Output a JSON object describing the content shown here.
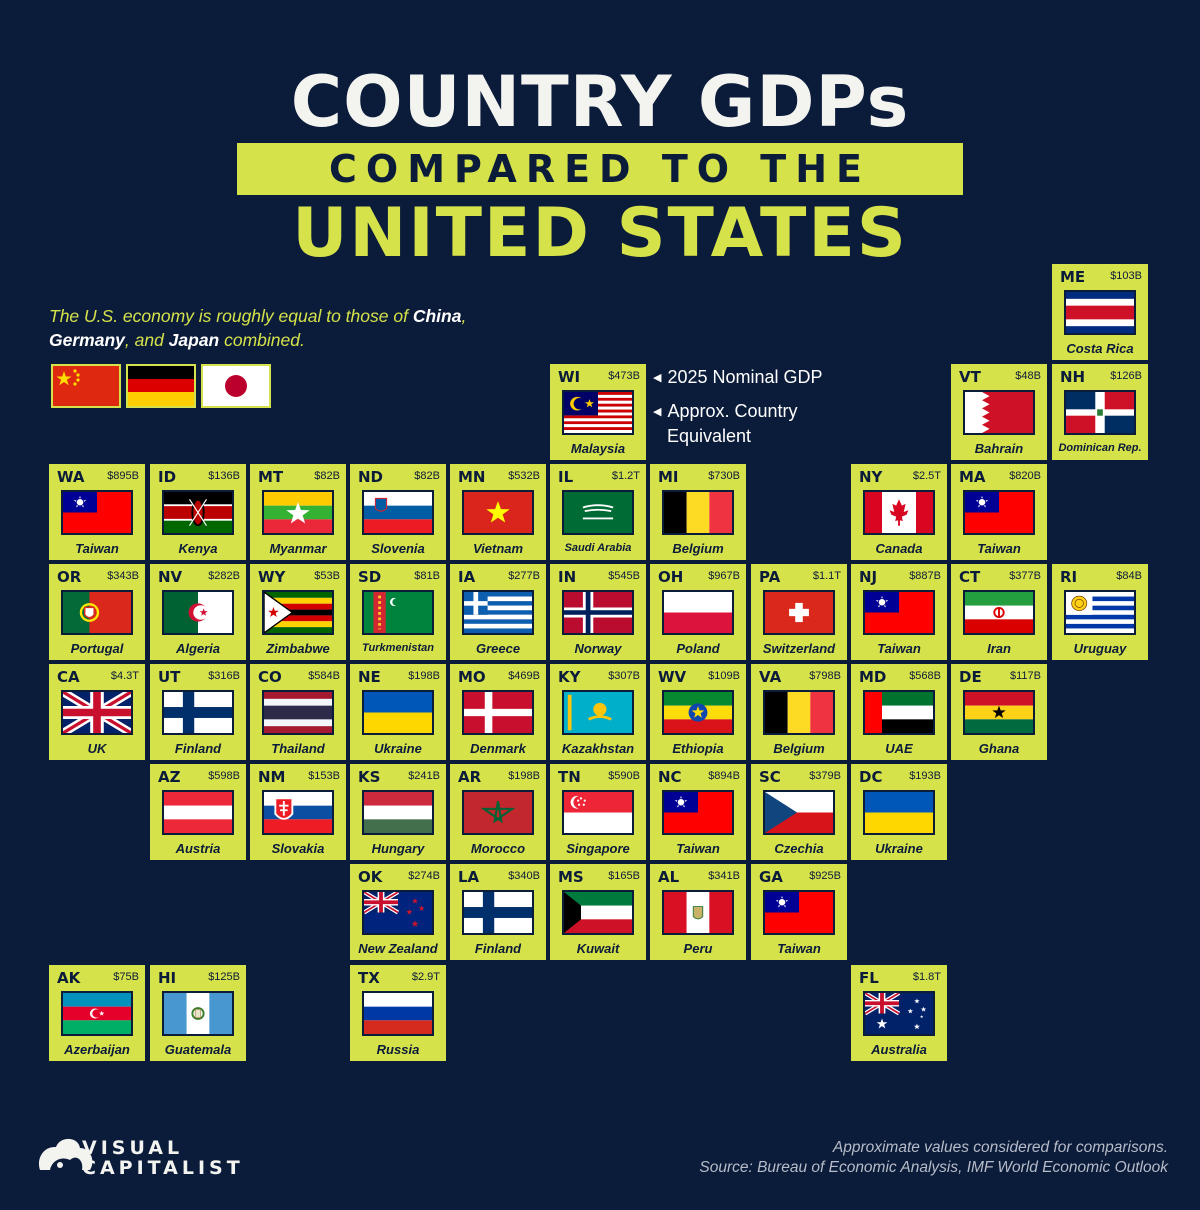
{
  "title": {
    "line1": "COUNTRY GDPs",
    "line2": "COMPARED TO THE",
    "line3": "UNITED STATES"
  },
  "intro": {
    "part1": "The U.S. economy is roughly equal to those of ",
    "china": "China",
    "comma": ", ",
    "germany": "Germany",
    "and": ", and ",
    "japan": "Japan",
    "part2": " combined."
  },
  "legend": {
    "gdp_label": "2025 Nominal GDP",
    "country_label_1": "Approx. Country",
    "country_label_2": "Equivalent"
  },
  "footer": {
    "note": "Approximate values considered for comparisons.",
    "source": "Source: Bureau of Economic Analysis, IMF World Economic Outlook"
  },
  "logo": {
    "line1": "VISUAL",
    "line2": "CAPITALIST"
  },
  "colors": {
    "background": "#0b1b3a",
    "tile": "#d6e24a",
    "title": "#f3f3f0"
  },
  "states": [
    {
      "code": "ME",
      "gdp": "$103B",
      "country": "Costa Rica",
      "flag": "costa-rica"
    },
    {
      "code": "WI",
      "gdp": "$473B",
      "country": "Malaysia",
      "flag": "malaysia"
    },
    {
      "code": "VT",
      "gdp": "$48B",
      "country": "Bahrain",
      "flag": "bahrain"
    },
    {
      "code": "NH",
      "gdp": "$126B",
      "country": "Dominican Rep.",
      "flag": "dominican"
    },
    {
      "code": "WA",
      "gdp": "$895B",
      "country": "Taiwan",
      "flag": "taiwan"
    },
    {
      "code": "ID",
      "gdp": "$136B",
      "country": "Kenya",
      "flag": "kenya"
    },
    {
      "code": "MT",
      "gdp": "$82B",
      "country": "Myanmar",
      "flag": "myanmar"
    },
    {
      "code": "ND",
      "gdp": "$82B",
      "country": "Slovenia",
      "flag": "slovenia"
    },
    {
      "code": "MN",
      "gdp": "$532B",
      "country": "Vietnam",
      "flag": "vietnam"
    },
    {
      "code": "IL",
      "gdp": "$1.2T",
      "country": "Saudi Arabia",
      "flag": "saudi"
    },
    {
      "code": "MI",
      "gdp": "$730B",
      "country": "Belgium",
      "flag": "belgium"
    },
    {
      "code": "NY",
      "gdp": "$2.5T",
      "country": "Canada",
      "flag": "canada"
    },
    {
      "code": "MA",
      "gdp": "$820B",
      "country": "Taiwan",
      "flag": "taiwan"
    },
    {
      "code": "OR",
      "gdp": "$343B",
      "country": "Portugal",
      "flag": "portugal"
    },
    {
      "code": "NV",
      "gdp": "$282B",
      "country": "Algeria",
      "flag": "algeria"
    },
    {
      "code": "WY",
      "gdp": "$53B",
      "country": "Zimbabwe",
      "flag": "zimbabwe"
    },
    {
      "code": "SD",
      "gdp": "$81B",
      "country": "Turkmenistan",
      "flag": "turkmenistan"
    },
    {
      "code": "IA",
      "gdp": "$277B",
      "country": "Greece",
      "flag": "greece"
    },
    {
      "code": "IN",
      "gdp": "$545B",
      "country": "Norway",
      "flag": "norway"
    },
    {
      "code": "OH",
      "gdp": "$967B",
      "country": "Poland",
      "flag": "poland"
    },
    {
      "code": "PA",
      "gdp": "$1.1T",
      "country": "Switzerland",
      "flag": "switzerland"
    },
    {
      "code": "NJ",
      "gdp": "$887B",
      "country": "Taiwan",
      "flag": "taiwan"
    },
    {
      "code": "CT",
      "gdp": "$377B",
      "country": "Iran",
      "flag": "iran"
    },
    {
      "code": "RI",
      "gdp": "$84B",
      "country": "Uruguay",
      "flag": "uruguay"
    },
    {
      "code": "CA",
      "gdp": "$4.3T",
      "country": "UK",
      "flag": "uk"
    },
    {
      "code": "UT",
      "gdp": "$316B",
      "country": "Finland",
      "flag": "finland"
    },
    {
      "code": "CO",
      "gdp": "$584B",
      "country": "Thailand",
      "flag": "thailand"
    },
    {
      "code": "NE",
      "gdp": "$198B",
      "country": "Ukraine",
      "flag": "ukraine"
    },
    {
      "code": "MO",
      "gdp": "$469B",
      "country": "Denmark",
      "flag": "denmark"
    },
    {
      "code": "KY",
      "gdp": "$307B",
      "country": "Kazakhstan",
      "flag": "kazakhstan"
    },
    {
      "code": "WV",
      "gdp": "$109B",
      "country": "Ethiopia",
      "flag": "ethiopia"
    },
    {
      "code": "VA",
      "gdp": "$798B",
      "country": "Belgium",
      "flag": "belgium"
    },
    {
      "code": "MD",
      "gdp": "$568B",
      "country": "UAE",
      "flag": "uae"
    },
    {
      "code": "DE",
      "gdp": "$117B",
      "country": "Ghana",
      "flag": "ghana"
    },
    {
      "code": "AZ",
      "gdp": "$598B",
      "country": "Austria",
      "flag": "austria"
    },
    {
      "code": "NM",
      "gdp": "$153B",
      "country": "Slovakia",
      "flag": "slovakia"
    },
    {
      "code": "KS",
      "gdp": "$241B",
      "country": "Hungary",
      "flag": "hungary"
    },
    {
      "code": "AR",
      "gdp": "$198B",
      "country": "Morocco",
      "flag": "morocco"
    },
    {
      "code": "TN",
      "gdp": "$590B",
      "country": "Singapore",
      "flag": "singapore"
    },
    {
      "code": "NC",
      "gdp": "$894B",
      "country": "Taiwan",
      "flag": "taiwan"
    },
    {
      "code": "SC",
      "gdp": "$379B",
      "country": "Czechia",
      "flag": "czechia"
    },
    {
      "code": "DC",
      "gdp": "$193B",
      "country": "Ukraine",
      "flag": "ukraine"
    },
    {
      "code": "OK",
      "gdp": "$274B",
      "country": "New Zealand",
      "flag": "new-zealand"
    },
    {
      "code": "LA",
      "gdp": "$340B",
      "country": "Finland",
      "flag": "finland"
    },
    {
      "code": "MS",
      "gdp": "$165B",
      "country": "Kuwait",
      "flag": "kuwait"
    },
    {
      "code": "AL",
      "gdp": "$341B",
      "country": "Peru",
      "flag": "peru"
    },
    {
      "code": "GA",
      "gdp": "$925B",
      "country": "Taiwan",
      "flag": "taiwan"
    },
    {
      "code": "AK",
      "gdp": "$75B",
      "country": "Azerbaijan",
      "flag": "azerbaijan"
    },
    {
      "code": "HI",
      "gdp": "$125B",
      "country": "Guatemala",
      "flag": "guatemala"
    },
    {
      "code": "TX",
      "gdp": "$2.9T",
      "country": "Russia",
      "flag": "russia"
    },
    {
      "code": "FL",
      "gdp": "$1.8T",
      "country": "Australia",
      "flag": "australia"
    }
  ]
}
